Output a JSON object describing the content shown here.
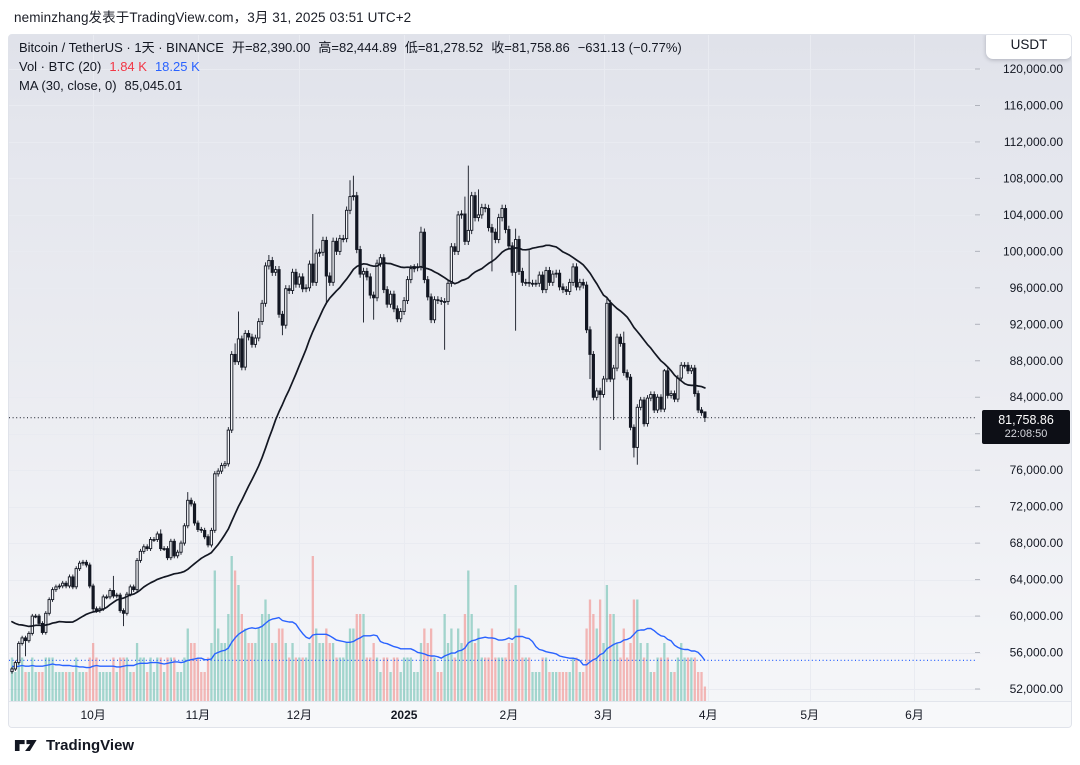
{
  "header": {
    "byline": "neminzhang发表于TradingView.com，3月 31, 2025 03:51 UTC+2"
  },
  "legend": {
    "symbol_line": "Bitcoin / TetherUS · 1天 · BINANCE",
    "open": "开=82,390.00",
    "high": "高=82,444.89",
    "low": "低=81,278.52",
    "close": "收=81,758.86",
    "change": "−631.13 (−0.77%)",
    "vol_label": "Vol · BTC (20)",
    "vol_value": "1.84 K",
    "vol_ma_value": "18.25 K",
    "ma_label": "MA (30, close, 0)",
    "ma_value": "85,045.01"
  },
  "axis": {
    "currency": "USDT",
    "last_price": "81,758.86",
    "countdown": "22:08:50"
  },
  "footer": {
    "brand": "TradingView"
  },
  "chart_data": {
    "type": "candlestick+volume",
    "symbol": "Bitcoin / TetherUS",
    "interval": "1天",
    "exchange": "BINANCE",
    "start_date": "2024-09-07",
    "end_date": "2025-03-31",
    "last_bar": {
      "open": 82390.0,
      "high": 82444.89,
      "low": 81278.52,
      "close": 81758.86,
      "change": -631.13,
      "change_pct": -0.77
    },
    "price_ma_period": 30,
    "price_ma_value": 85045.01,
    "vol_ma_period": 20,
    "vol_current": "1.84 K",
    "vol_ma_current": "18.25 K",
    "current_price_k": 81.759,
    "y_axis": {
      "unit": "USDT",
      "min_k": 52,
      "max_k": 120,
      "tick_step_k": 4,
      "ticks_k": [
        120,
        116,
        112,
        108,
        104,
        100,
        96,
        92,
        88,
        84,
        80,
        76,
        72,
        68,
        64,
        60,
        56,
        52
      ]
    },
    "x_axis": {
      "months": [
        {
          "label": "10月",
          "day": 24
        },
        {
          "label": "11月",
          "day": 55
        },
        {
          "label": "12月",
          "day": 85
        },
        {
          "label": "2025",
          "day": 116,
          "bold": true
        },
        {
          "label": "2月",
          "day": 147
        },
        {
          "label": "3月",
          "day": 175
        },
        {
          "label": "4月",
          "day": 206
        },
        {
          "label": "5月",
          "day": 236
        },
        {
          "label": "6月",
          "day": 267
        }
      ]
    },
    "pre_closes_k": [
      62.7,
      60.9,
      60.9,
      58.7,
      59.4,
      60.6,
      58.7,
      57.5,
      58.9,
      59.5,
      58.5,
      59.5,
      59.0,
      61.2,
      60.4,
      64.1,
      64.2,
      64.3,
      63.0,
      59.5,
      59.0,
      59.4,
      59.1,
      59.0,
      57.3,
      59.1,
      57.5,
      58.0,
      56.2,
      53.9
    ],
    "pre_vols": [
      3,
      3,
      2,
      2,
      3,
      2,
      2,
      3,
      2,
      2,
      2,
      2,
      2,
      3,
      2,
      3,
      2,
      2,
      3,
      3
    ],
    "closes_k": [
      54.2,
      54.9,
      57.0,
      57.6,
      57.3,
      58.1,
      60.0,
      60.0,
      59.2,
      58.2,
      60.3,
      61.8,
      62.9,
      63.2,
      63.3,
      63.6,
      63.3,
      64.3,
      63.2,
      65.2,
      65.8,
      65.9,
      65.6,
      63.3,
      60.8,
      60.6,
      60.8,
      62.1,
      62.1,
      62.8,
      62.2,
      62.3,
      60.6,
      60.3,
      62.4,
      63.2,
      62.9,
      66.1,
      67.1,
      67.6,
      67.4,
      68.4,
      68.4,
      69.0,
      67.4,
      67.4,
      66.4,
      68.2,
      66.6,
      67.0,
      68.0,
      69.9,
      72.7,
      72.3,
      70.2,
      69.5,
      69.4,
      68.7,
      67.8,
      69.4,
      75.6,
      75.9,
      76.5,
      76.7,
      80.4,
      88.7,
      87.9,
      90.4,
      87.3,
      91.0,
      90.6,
      89.8,
      90.5,
      92.3,
      94.3,
      98.4,
      99.0,
      97.7,
      98.0,
      93.1,
      91.9,
      95.9,
      95.7,
      97.7,
      96.4,
      97.2,
      95.9,
      96.0,
      98.6,
      96.6,
      99.8,
      99.9,
      101.2,
      97.3,
      96.6,
      101.1,
      100.0,
      101.4,
      101.4,
      104.5,
      106.0,
      106.1,
      100.2,
      97.5,
      97.8,
      97.2,
      95.2,
      94.9,
      98.7,
      99.3,
      95.8,
      94.2,
      95.3,
      93.7,
      92.6,
      93.4,
      94.6,
      96.9,
      98.1,
      98.2,
      98.3,
      102.1,
      96.9,
      95.0,
      92.5,
      94.7,
      94.6,
      94.5,
      94.5,
      96.5,
      100.5,
      100.0,
      104.0,
      104.1,
      101.1,
      102.3,
      106.1,
      103.7,
      104.0,
      104.8,
      104.7,
      102.6,
      102.1,
      101.3,
      103.7,
      104.7,
      102.4,
      100.6,
      97.7,
      101.3,
      97.8,
      96.6,
      96.6,
      96.5,
      96.5,
      96.5,
      97.4,
      95.8,
      97.9,
      96.6,
      97.5,
      97.6,
      96.1,
      95.8,
      95.6,
      96.6,
      98.3,
      96.1,
      96.6,
      96.3,
      91.4,
      88.7,
      84.0,
      84.7,
      84.3,
      86.0,
      94.3,
      86.0,
      87.2,
      90.6,
      89.9,
      86.7,
      86.2,
      80.7,
      78.5,
      82.9,
      83.7,
      81.1,
      83.9,
      84.3,
      82.6,
      84.0,
      82.7,
      86.9,
      84.2,
      84.4,
      83.8,
      86.1,
      87.5,
      87.5,
      86.9,
      87.2,
      84.4,
      82.6,
      82.3,
      81.76
    ],
    "vols": [
      3,
      2,
      3,
      3,
      2,
      2,
      3,
      2,
      2,
      2,
      3,
      3,
      3,
      2,
      2,
      2,
      2,
      2,
      2,
      3,
      2,
      2,
      2,
      3,
      4,
      3,
      2,
      2,
      2,
      2,
      3,
      2,
      3,
      3,
      3,
      2,
      2,
      4,
      3,
      3,
      2,
      3,
      2,
      3,
      3,
      2,
      3,
      3,
      3,
      2,
      2,
      3,
      5,
      4,
      4,
      3,
      2,
      2,
      3,
      4,
      9,
      5,
      4,
      4,
      6,
      10,
      9,
      8,
      6,
      5,
      4,
      4,
      4,
      5,
      6,
      7,
      6,
      4,
      4,
      5,
      5,
      4,
      3,
      4,
      3,
      3,
      3,
      3,
      4,
      10,
      5,
      4,
      4,
      5,
      4,
      4,
      3,
      3,
      3,
      4,
      5,
      5,
      6,
      6,
      6,
      3,
      3,
      4,
      3,
      2,
      3,
      3,
      2,
      3,
      3,
      2,
      3,
      3,
      3,
      2,
      2,
      4,
      5,
      4,
      5,
      3,
      2,
      2,
      6,
      4,
      5,
      3,
      5,
      4,
      6,
      9,
      6,
      4,
      5,
      3,
      3,
      3,
      5,
      3,
      3,
      3,
      3,
      4,
      4,
      8,
      5,
      3,
      3,
      3,
      2,
      2,
      2,
      3,
      3,
      2,
      2,
      2,
      2,
      2,
      2,
      2,
      3,
      3,
      2,
      2,
      5,
      7,
      6,
      5,
      7,
      4,
      8,
      6,
      6,
      4,
      3,
      5,
      3,
      4,
      7,
      7,
      4,
      3,
      4,
      2,
      2,
      3,
      3,
      4,
      3,
      2,
      2,
      3,
      4,
      3,
      3,
      3,
      3,
      2,
      2,
      1
    ],
    "wicks_k": {
      "4": [
        null,
        55.6
      ],
      "30": [
        64.4,
        null
      ],
      "33": [
        null,
        58.9
      ],
      "44": [
        69.5,
        null
      ],
      "52": [
        73.6,
        null
      ],
      "66": [
        89.9,
        null
      ],
      "67": [
        93.4,
        null
      ],
      "76": [
        99.6,
        null
      ],
      "80": [
        null,
        90.8
      ],
      "89": [
        104.1,
        null
      ],
      "93": [
        null,
        94.2
      ],
      "100": [
        107.8,
        null
      ],
      "101": [
        108.3,
        null
      ],
      "104": [
        null,
        92.2
      ],
      "107": [
        null,
        92.5
      ],
      "121": [
        102.7,
        null
      ],
      "128": [
        null,
        89.2
      ],
      "134": [
        106.0,
        null
      ],
      "135": [
        109.4,
        null
      ],
      "138": [
        106.8,
        null
      ],
      "142": [
        null,
        97.8
      ],
      "149": [
        102.5,
        91.3
      ],
      "153": [
        100.1,
        null
      ],
      "171": [
        null,
        86.0
      ],
      "174": [
        null,
        78.2
      ],
      "176": [
        95.0,
        null
      ],
      "178": [
        null,
        81.5
      ],
      "181": [
        91.2,
        null
      ],
      "184": [
        null,
        77.4
      ],
      "185": [
        null,
        76.6
      ],
      "193": [
        87.1,
        null
      ],
      "205": [
        82.444,
        81.279
      ]
    },
    "open_overrides": {
      "205": 82.39
    },
    "colors": {
      "candle": "#131722",
      "up_fill": "#f4f5f8",
      "down_fill": "#131722",
      "price_ma": "#131722",
      "vol_up": "rgba(94,186,170,0.55)",
      "vol_down": "rgba(240,129,125,0.55)",
      "vol_ma": "#2962ff",
      "grid": "#e9ebf1",
      "axis_text": "#131722",
      "dotted_price": "#2a2e39",
      "dotted_vol": "#2962ff",
      "axis_strip": "#f7f8fa",
      "axis_strip_border": "#e2e5ec"
    },
    "legend_values": {
      "open": 82390.0,
      "high": 82444.89,
      "low": 81278.52,
      "close": 81758.86
    }
  }
}
